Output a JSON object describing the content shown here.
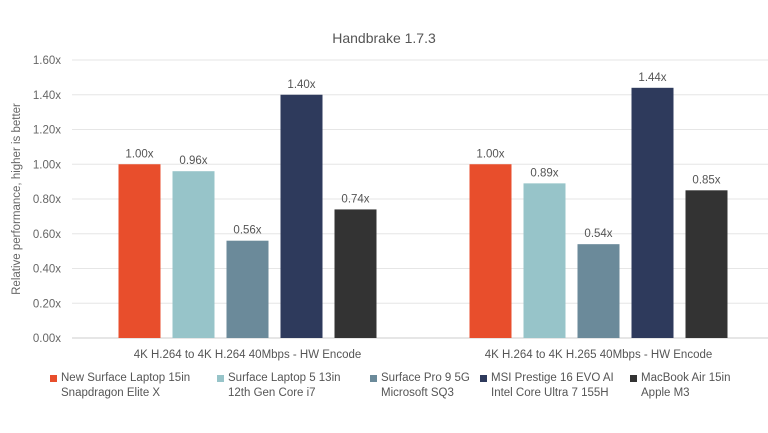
{
  "chart_data": {
    "type": "bar",
    "title": "Handbrake 1.7.3",
    "xlabel": "",
    "ylabel": "Relative performance, higher is better",
    "ylim": [
      0,
      1.6
    ],
    "yticks": [
      "0.00x",
      "0.20x",
      "0.40x",
      "0.60x",
      "0.80x",
      "1.00x",
      "1.20x",
      "1.40x",
      "1.60x"
    ],
    "grid": true,
    "legend_position": "bottom",
    "categories": [
      "4K H.264 to 4K H.264 40Mbps - HW Encode",
      "4K H.264 to 4K H.265 40Mbps - HW Encode"
    ],
    "series": [
      {
        "name": "New Surface Laptop 15in Snapdragon Elite X",
        "line1": "New Surface Laptop 15in",
        "line2": "Snapdragon Elite X",
        "color": "#E84E2C",
        "values": [
          1.0,
          1.0
        ],
        "labels": [
          "1.00x",
          "1.00x"
        ]
      },
      {
        "name": "Surface Laptop 5 13in 12th Gen Core i7",
        "line1": "Surface Laptop 5 13in",
        "line2": "12th Gen Core i7",
        "color": "#97C4C9",
        "values": [
          0.96,
          0.89
        ],
        "labels": [
          "0.96x",
          "0.89x"
        ]
      },
      {
        "name": "Surface Pro 9 5G Microsoft SQ3",
        "line1": "Surface Pro 9 5G",
        "line2": "Microsoft SQ3",
        "color": "#6B8A9A",
        "values": [
          0.56,
          0.54
        ],
        "labels": [
          "0.56x",
          "0.54x"
        ]
      },
      {
        "name": "MSI Prestige 16 EVO AI Intel Core Ultra 7 155H",
        "line1": "MSI Prestige 16 EVO AI",
        "line2": "Intel Core Ultra 7 155H",
        "color": "#2E3A5C",
        "values": [
          1.4,
          1.44
        ],
        "labels": [
          "1.40x",
          "1.44x"
        ]
      },
      {
        "name": "MacBook Air 15in Apple M3",
        "line1": "MacBook Air 15in",
        "line2": "Apple M3",
        "color": "#333333",
        "values": [
          0.74,
          0.85
        ],
        "labels": [
          "0.74x",
          "0.85x"
        ]
      }
    ]
  }
}
